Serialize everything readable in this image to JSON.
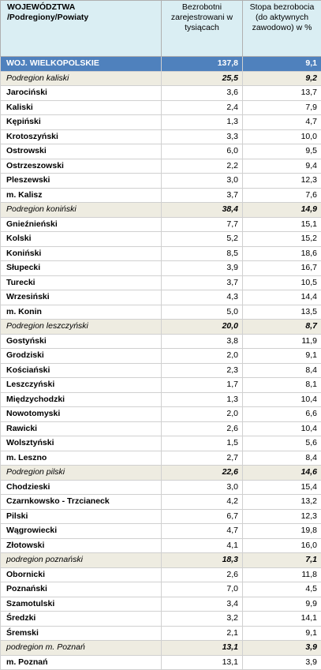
{
  "header": {
    "col1": "WOJEWÓDZTWA /Podregiony/Powiaty",
    "col2": "Bezrobotni zarejestrowani w tysiącach",
    "col3": "Stopa bezrobocia  (do aktywnych zawodowo) w %"
  },
  "rows": [
    {
      "name": "WOJ. WIELKOPOLSKIE",
      "unemployed": "137,8",
      "rate": "9,1",
      "level": "voivodeship"
    },
    {
      "name": "Podregion kaliski",
      "unemployed": "25,5",
      "rate": "9,2",
      "level": "subregion"
    },
    {
      "name": "Jarociński",
      "unemployed": "3,6",
      "rate": "13,7",
      "level": "county"
    },
    {
      "name": "Kaliski",
      "unemployed": "2,4",
      "rate": "7,9",
      "level": "county"
    },
    {
      "name": "Kępiński",
      "unemployed": "1,3",
      "rate": "4,7",
      "level": "county"
    },
    {
      "name": "Krotoszyński",
      "unemployed": "3,3",
      "rate": "10,0",
      "level": "county"
    },
    {
      "name": "Ostrowski",
      "unemployed": "6,0",
      "rate": "9,5",
      "level": "county"
    },
    {
      "name": "Ostrzeszowski",
      "unemployed": "2,2",
      "rate": "9,4",
      "level": "county"
    },
    {
      "name": "Pleszewski",
      "unemployed": "3,0",
      "rate": "12,3",
      "level": "county"
    },
    {
      "name": "m. Kalisz",
      "unemployed": "3,7",
      "rate": "7,6",
      "level": "county"
    },
    {
      "name": "Podregion koniński",
      "unemployed": "38,4",
      "rate": "14,9",
      "level": "subregion"
    },
    {
      "name": "Gnieźnieński",
      "unemployed": "7,7",
      "rate": "15,1",
      "level": "county"
    },
    {
      "name": "Kolski",
      "unemployed": "5,2",
      "rate": "15,2",
      "level": "county"
    },
    {
      "name": "Koniński",
      "unemployed": "8,5",
      "rate": "18,6",
      "level": "county"
    },
    {
      "name": "Słupecki",
      "unemployed": "3,9",
      "rate": "16,7",
      "level": "county"
    },
    {
      "name": "Turecki",
      "unemployed": "3,7",
      "rate": "10,5",
      "level": "county"
    },
    {
      "name": "Wrzesiński",
      "unemployed": "4,3",
      "rate": "14,4",
      "level": "county"
    },
    {
      "name": "m. Konin",
      "unemployed": "5,0",
      "rate": "13,5",
      "level": "county"
    },
    {
      "name": "Podregion leszczyński",
      "unemployed": "20,0",
      "rate": "8,7",
      "level": "subregion"
    },
    {
      "name": "Gostyński",
      "unemployed": "3,8",
      "rate": "11,9",
      "level": "county"
    },
    {
      "name": "Grodziski",
      "unemployed": "2,0",
      "rate": "9,1",
      "level": "county"
    },
    {
      "name": "Kościański",
      "unemployed": "2,3",
      "rate": "8,4",
      "level": "county"
    },
    {
      "name": "Leszczyński",
      "unemployed": "1,7",
      "rate": "8,1",
      "level": "county"
    },
    {
      "name": "Międzychodzki",
      "unemployed": "1,3",
      "rate": "10,4",
      "level": "county"
    },
    {
      "name": "Nowotomyski",
      "unemployed": "2,0",
      "rate": "6,6",
      "level": "county"
    },
    {
      "name": "Rawicki",
      "unemployed": "2,6",
      "rate": "10,4",
      "level": "county"
    },
    {
      "name": "Wolsztyński",
      "unemployed": "1,5",
      "rate": "5,6",
      "level": "county"
    },
    {
      "name": "m. Leszno",
      "unemployed": "2,7",
      "rate": "8,4",
      "level": "county"
    },
    {
      "name": "Podregion pilski",
      "unemployed": "22,6",
      "rate": "14,6",
      "level": "subregion"
    },
    {
      "name": "Chodzieski",
      "unemployed": "3,0",
      "rate": "15,4",
      "level": "county"
    },
    {
      "name": "Czarnkowsko - Trzcianeck",
      "unemployed": "4,2",
      "rate": "13,2",
      "level": "county"
    },
    {
      "name": "Pilski",
      "unemployed": "6,7",
      "rate": "12,3",
      "level": "county"
    },
    {
      "name": "Wągrowiecki",
      "unemployed": "4,7",
      "rate": "19,8",
      "level": "county"
    },
    {
      "name": "Złotowski",
      "unemployed": "4,1",
      "rate": "16,0",
      "level": "county"
    },
    {
      "name": "podregion poznański",
      "unemployed": "18,3",
      "rate": "7,1",
      "level": "subregion"
    },
    {
      "name": "Obornicki",
      "unemployed": "2,6",
      "rate": "11,8",
      "level": "county"
    },
    {
      "name": "Poznański",
      "unemployed": "7,0",
      "rate": "4,5",
      "level": "county"
    },
    {
      "name": "Szamotulski",
      "unemployed": "3,4",
      "rate": "9,9",
      "level": "county"
    },
    {
      "name": "Średzki",
      "unemployed": "3,2",
      "rate": "14,1",
      "level": "county"
    },
    {
      "name": "Śremski",
      "unemployed": "2,1",
      "rate": "9,1",
      "level": "county"
    },
    {
      "name": "podregion m. Poznań",
      "unemployed": "13,1",
      "rate": "3,9",
      "level": "subregion"
    },
    {
      "name": "m. Poznań",
      "unemployed": "13,1",
      "rate": "3,9",
      "level": "county"
    }
  ],
  "colors": {
    "header_bg": "#daeef3",
    "voivodeship_bg": "#4f81bd",
    "subregion_bg": "#eeece1"
  }
}
